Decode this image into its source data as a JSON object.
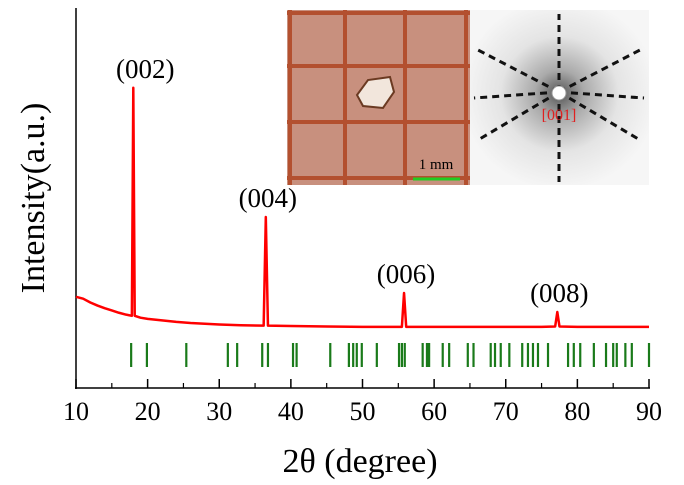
{
  "chart_data": {
    "type": "line",
    "x_label": "2θ (degree)",
    "y_label": "Intensity(a.u.)",
    "xlim": [
      10,
      90
    ],
    "xticks": [
      10,
      20,
      30,
      40,
      50,
      60,
      70,
      80,
      90
    ],
    "xminorticks": [
      15,
      25,
      35,
      45,
      55,
      65,
      75,
      85
    ],
    "ylim": [
      0,
      100
    ],
    "series": [
      {
        "color": "#ff0000",
        "x": [
          10,
          11,
          12,
          13,
          14,
          15,
          16,
          17,
          17.8,
          18.0,
          18.2,
          19,
          20,
          22,
          24,
          26,
          28,
          30,
          33,
          36.2,
          36.5,
          36.8,
          40,
          45,
          50,
          55.5,
          55.8,
          56.1,
          60,
          65,
          70,
          75,
          76.9,
          77.2,
          77.5,
          80,
          85,
          90
        ],
        "values": [
          24,
          23.5,
          22.5,
          21.7,
          21,
          20.4,
          19.8,
          19.3,
          19,
          79,
          19,
          18.5,
          18.2,
          17.8,
          17.4,
          17.1,
          16.9,
          16.7,
          16.5,
          16.4,
          45,
          16.4,
          16.3,
          16.2,
          16.1,
          16.1,
          25,
          16.1,
          16.1,
          16.1,
          16.1,
          16.1,
          16.2,
          20,
          16.2,
          16.1,
          16.1,
          16.1
        ]
      }
    ],
    "peak_labels": [
      "(002)",
      "(004)",
      "(006)",
      "(008)"
    ],
    "reference_color": "#1a7a1a",
    "reference_positions": [
      17.7,
      19.9,
      25.4,
      31.2,
      32.5,
      36.0,
      36.8,
      40.3,
      40.8,
      45.5,
      48.1,
      48.7,
      49.2,
      49.9,
      52.0,
      55.1,
      55.5,
      55.9,
      58.4,
      59.0,
      59.3,
      61.2,
      62.1,
      64.7,
      65.5,
      67.9,
      68.5,
      69.3,
      70.5,
      72.3,
      73.1,
      73.8,
      74.5,
      75.9,
      78.7,
      79.5,
      80.4,
      82.3,
      84.0,
      85.0,
      85.5,
      86.7,
      87.6,
      90.0
    ],
    "inset": {
      "scale_bar": "1 mm",
      "zone_axis": "[001]"
    }
  }
}
